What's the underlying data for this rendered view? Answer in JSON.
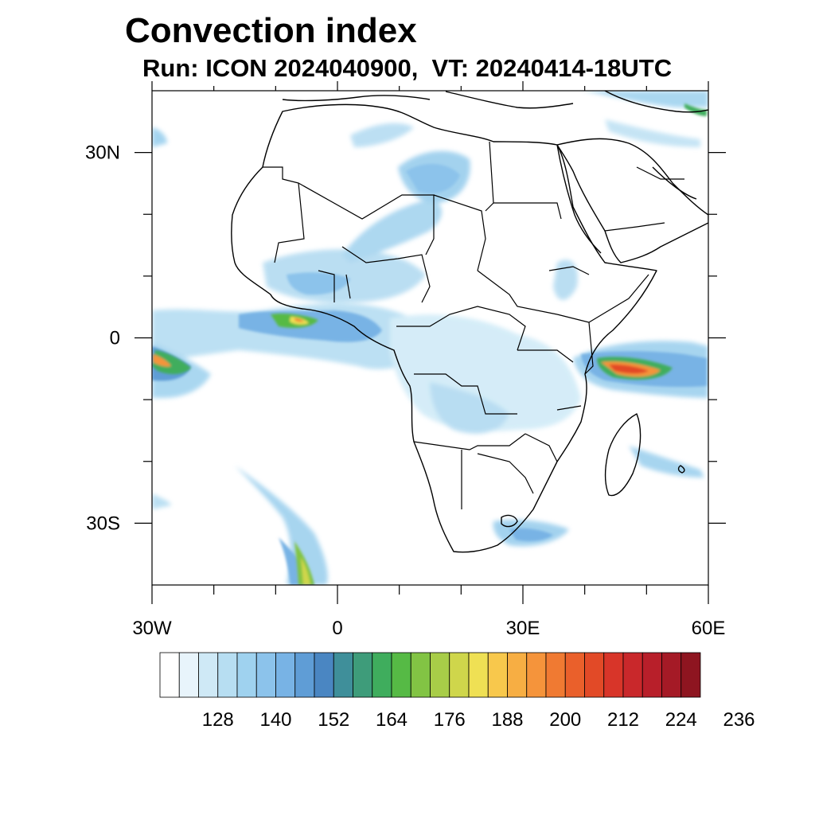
{
  "title": "Convection index",
  "subtitle": "Run: ICON 2024040900,  VT: 20240414-18UTC",
  "map": {
    "lon_range": [
      -30,
      60
    ],
    "lat_range": [
      -40,
      40
    ],
    "x_ticks": [
      {
        "lon": -30,
        "label": "30W"
      },
      {
        "lon": 0,
        "label": "0"
      },
      {
        "lon": 30,
        "label": "30E"
      },
      {
        "lon": 60,
        "label": "60E"
      }
    ],
    "y_ticks": [
      {
        "lat": 30,
        "label": "30N"
      },
      {
        "lat": 0,
        "label": "0"
      },
      {
        "lat": -30,
        "label": "30S"
      }
    ],
    "minor_lon": [
      -20,
      -10,
      10,
      20,
      40,
      50
    ],
    "minor_lat": [
      20,
      10,
      -10,
      -20
    ]
  },
  "colorbar": {
    "colors": [
      "#ffffff",
      "#e8f4fb",
      "#cfe9f6",
      "#b7def2",
      "#9fd2ef",
      "#8cc3eb",
      "#78b3e5",
      "#5f9dd6",
      "#4a86c2",
      "#3f8f9a",
      "#3e9c7a",
      "#3fad5d",
      "#56ba45",
      "#82c444",
      "#a8cd48",
      "#cfd64b",
      "#efe054",
      "#f8c84c",
      "#f7ae43",
      "#f5943b",
      "#f07a32",
      "#ea602b",
      "#e24a27",
      "#d83529",
      "#c9282b",
      "#b81f2a",
      "#a51a26",
      "#8e1520"
    ],
    "labels": [
      "128",
      "140",
      "152",
      "164",
      "176",
      "188",
      "200",
      "212",
      "224",
      "236"
    ]
  }
}
